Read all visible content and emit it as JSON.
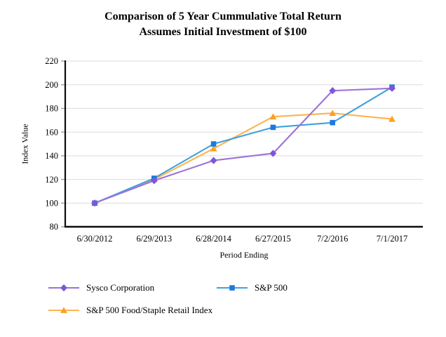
{
  "chart_data": {
    "type": "line",
    "title": "Comparison of 5 Year Cummulative Total Return",
    "subtitle": "Assumes Initial Investment of $100",
    "xlabel": "Period Ending",
    "ylabel": "Index Value",
    "categories": [
      "6/30/2012",
      "6/29/2013",
      "6/28/2014",
      "6/27/2015",
      "7/2/2016",
      "7/1/2017"
    ],
    "ylim": [
      80,
      220
    ],
    "ytick_step": 20,
    "grid": true,
    "legend_position": "bottom",
    "series": [
      {
        "name": "Sysco Corporation",
        "marker": "diamond",
        "line_color": "#9C73D8",
        "marker_color": "#8055D8",
        "values": [
          100,
          119,
          136,
          142,
          195,
          197
        ]
      },
      {
        "name": "S&P 500",
        "marker": "square",
        "line_color": "#3FA2DE",
        "marker_color": "#1E78E0",
        "values": [
          100,
          121,
          150,
          164,
          168,
          198
        ]
      },
      {
        "name": "S&P 500 Food/Staple Retail Index",
        "marker": "triangle",
        "line_color": "#FDB44E",
        "marker_color": "#F9A11E",
        "values": [
          100,
          120,
          146,
          173,
          176,
          171
        ]
      }
    ],
    "draw_order": [
      2,
      1,
      0
    ],
    "colors": {
      "gridline": "#dcdcdc",
      "tick": "#9e9e9e",
      "axis": "#0d0d0d",
      "text": "#000000"
    }
  }
}
